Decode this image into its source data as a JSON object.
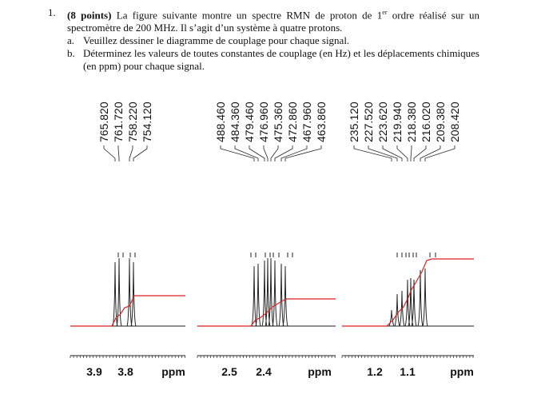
{
  "question": {
    "number": "1.",
    "points": "(8 points)",
    "text": "La figure suivante montre un spectre RMN de proton de 1",
    "superscript": "er",
    "text_end": " ordre réalisé sur un spectromètre de 200 MHz. Il s’agit d’un système à quatre protons.",
    "items": [
      {
        "marker": "a.",
        "text": "Veuillez dessiner le diagramme de couplage pour chaque signal."
      },
      {
        "marker": "b.",
        "text": "Déterminez les valeurs de toutes constantes de couplage (en Hz) et les déplacements chimiques (en ppm) pour chaque signal."
      }
    ]
  },
  "spectra": [
    {
      "peak_labels": [
        "765.820",
        "761.720",
        "758.220",
        "754.120"
      ],
      "axis_labels": [
        "3.9",
        "3.8"
      ],
      "unit": "ppm"
    },
    {
      "peak_labels": [
        "488.460",
        "484.360",
        "479.460",
        "476.960",
        "475.360",
        "472.860",
        "467.960",
        "463.860"
      ],
      "axis_labels": [
        "2.5",
        "2.4"
      ],
      "unit": "ppm"
    },
    {
      "peak_labels": [
        "235.120",
        "227.520",
        "223.620",
        "219.940",
        "218.380",
        "216.020",
        "209.380",
        "208.420"
      ],
      "axis_labels": [
        "1.2",
        "1.1"
      ],
      "unit": "ppm"
    }
  ]
}
